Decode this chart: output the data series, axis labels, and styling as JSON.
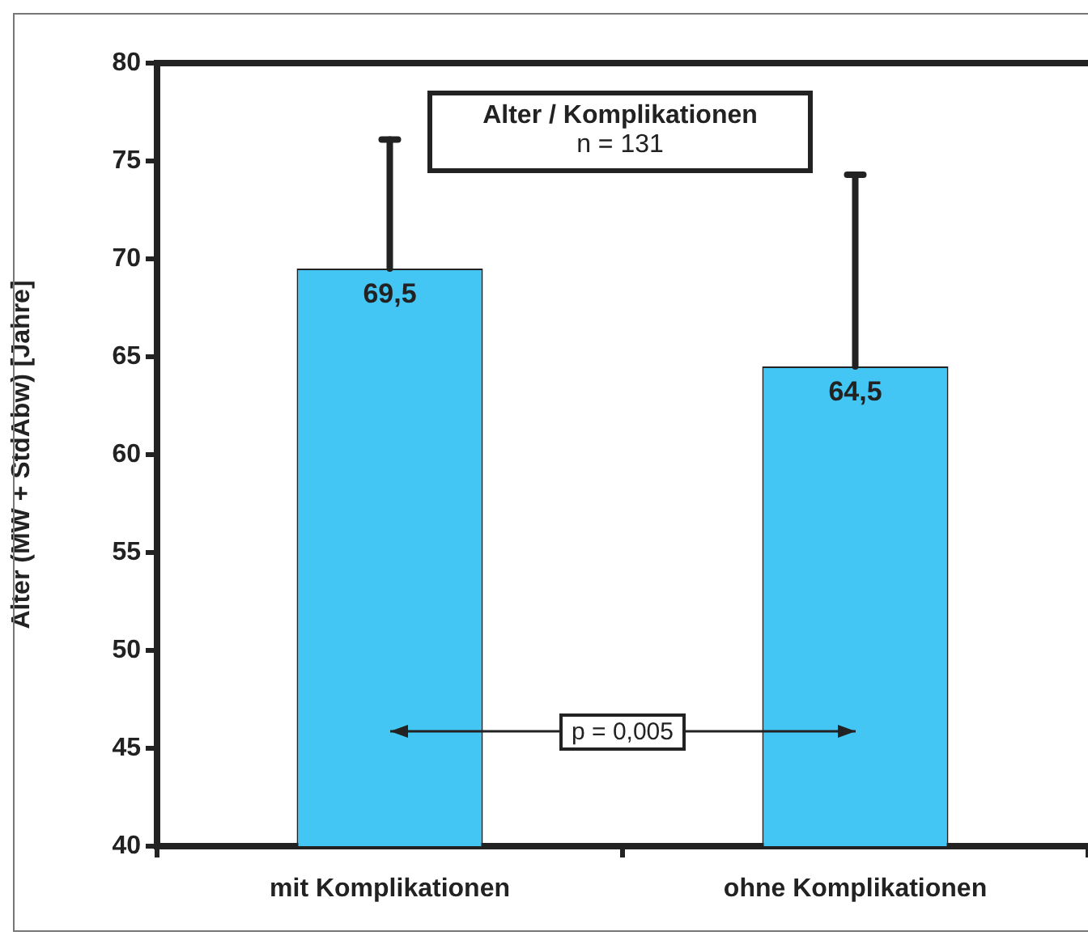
{
  "chart_data": {
    "type": "bar",
    "title": "Alter / Komplikationen",
    "subtitle": "n = 131",
    "ylabel": "Alter (MW + StdAbw) [Jahre]",
    "categories": [
      "mit Komplikationen",
      "ohne Komplikationen"
    ],
    "values": [
      69.5,
      64.5
    ],
    "color": "#44c6f4",
    "errors": [
      [
        69.5,
        76.1
      ],
      [
        64.5,
        74.3
      ]
    ],
    "value_labels": [
      "69,5",
      "64,5"
    ],
    "annotations": [
      "p = 0,005"
    ],
    "ylim": [
      40,
      80
    ],
    "yticks": [
      40,
      45,
      50,
      55,
      60,
      65,
      70,
      75,
      80
    ],
    "grid": false,
    "legend": false
  }
}
